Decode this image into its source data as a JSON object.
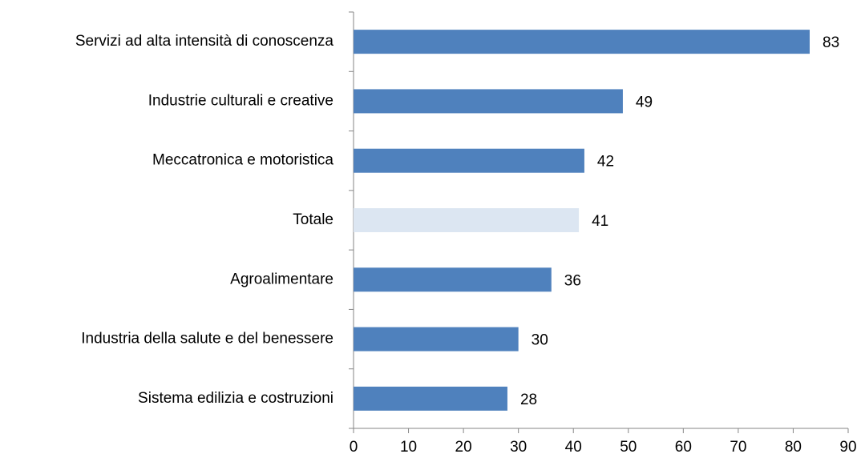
{
  "chart_data": {
    "type": "bar",
    "orientation": "horizontal",
    "categories": [
      "Servizi ad alta intensità di conoscenza",
      "Industrie culturali e creative",
      "Meccatronica e motoristica",
      "Totale",
      "Agroalimentare",
      "Industria della salute e del benessere",
      "Sistema edilizia e costruzioni"
    ],
    "values": [
      83,
      49,
      42,
      41,
      36,
      30,
      28
    ],
    "colors": [
      "#4f81bd",
      "#4f81bd",
      "#4f81bd",
      "#dce6f2",
      "#4f81bd",
      "#4f81bd",
      "#4f81bd"
    ],
    "xlim": [
      0,
      90
    ],
    "xticks": [
      0,
      10,
      20,
      30,
      40,
      50,
      60,
      70,
      80,
      90
    ],
    "grid": false
  }
}
